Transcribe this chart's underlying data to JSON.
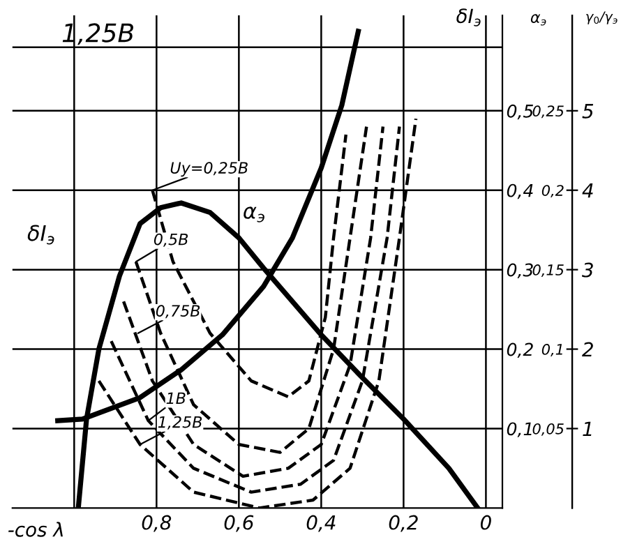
{
  "chart_data": {
    "type": "line",
    "xlabel": "-cos λ",
    "ylabel": "δI$_{э}$",
    "y2label": "α$_{э}$",
    "y3label": "γ$_{0}$/γ$_{э}$",
    "xlim": [
      1.15,
      -0.04
    ],
    "ylim": [
      0,
      0.62
    ],
    "y2lim": [
      0,
      0.31
    ],
    "y3lim": [
      0,
      6.2
    ],
    "xticks": [
      {
        "value": 1.0,
        "label": null
      },
      {
        "value": 0.8,
        "label": "0,8"
      },
      {
        "value": 0.6,
        "label": "0,6"
      },
      {
        "value": 0.4,
        "label": "0,4"
      },
      {
        "value": 0.2,
        "label": "0,2"
      },
      0
    ],
    "yticks": [
      {
        "value": 0.1,
        "label": "0,1"
      },
      {
        "value": 0.2,
        "label": "0,2"
      },
      {
        "value": 0.3,
        "label": "0,3"
      },
      {
        "value": 0.4,
        "label": "0,4"
      },
      {
        "value": 0.5,
        "label": "0,5"
      },
      {
        "value": 0.58,
        "label": null
      }
    ],
    "y2ticks": [
      {
        "value": 0.05,
        "label": "0,05"
      },
      {
        "value": 0.1,
        "label": "0,1"
      },
      {
        "value": 0.15,
        "label": "0,15"
      },
      {
        "value": 0.2,
        "label": "0,2"
      },
      {
        "value": 0.25,
        "label": "0,25"
      }
    ],
    "y3ticks": [
      1,
      2,
      3,
      4,
      5
    ],
    "grid": true,
    "series": [
      {
        "color": "#000000",
        "line_style": "solid",
        "axis": "y2",
        "x": [
          0.99,
          0.97,
          0.94,
          0.89,
          0.84,
          0.79,
          0.74,
          0.67,
          0.6,
          0.54,
          0.4,
          0.3,
          0.2,
          0.09,
          0.02
        ],
        "values": [
          0,
          0.056,
          0.1,
          0.146,
          0.179,
          0.189,
          0.192,
          0.186,
          0.17,
          0.151,
          0.109,
          0.082,
          0.056,
          0.025,
          0
        ]
      },
      {
        "color": "#000000",
        "line_style": "solid",
        "axis": "y3",
        "x": [
          1.04,
          0.98,
          0.84,
          0.74,
          0.64,
          0.54,
          0.47,
          0.4,
          0.35,
          0.31
        ],
        "values": [
          1.1,
          1.12,
          1.39,
          1.74,
          2.18,
          2.79,
          3.4,
          4.28,
          5.07,
          6.0
        ]
      },
      {
        "color": "#000000",
        "line_style": "dashed",
        "x": [
          0.81,
          0.76,
          0.67,
          0.57,
          0.48,
          0.43,
          0.39,
          0.37,
          0.34
        ],
        "values": [
          0.4,
          0.31,
          0.22,
          0.16,
          0.14,
          0.16,
          0.24,
          0.34,
          0.47
        ]
      },
      {
        "color": "#000000",
        "line_style": "dashed",
        "x": [
          0.85,
          0.79,
          0.71,
          0.6,
          0.5,
          0.43,
          0.37,
          0.33,
          0.29
        ],
        "values": [
          0.31,
          0.22,
          0.13,
          0.08,
          0.07,
          0.1,
          0.2,
          0.34,
          0.48
        ]
      },
      {
        "color": "#000000",
        "line_style": "dashed",
        "x": [
          0.88,
          0.81,
          0.71,
          0.59,
          0.48,
          0.4,
          0.33,
          0.28,
          0.25
        ],
        "values": [
          0.26,
          0.16,
          0.08,
          0.04,
          0.05,
          0.08,
          0.18,
          0.34,
          0.48
        ]
      },
      {
        "color": "#000000",
        "line_style": "dashed",
        "x": [
          0.91,
          0.82,
          0.71,
          0.57,
          0.45,
          0.37,
          0.3,
          0.24,
          0.21
        ],
        "values": [
          0.21,
          0.11,
          0.05,
          0.02,
          0.03,
          0.06,
          0.16,
          0.34,
          0.48
        ]
      },
      {
        "color": "#000000",
        "line_style": "dashed",
        "x": [
          0.94,
          0.84,
          0.71,
          0.55,
          0.42,
          0.33,
          0.26,
          0.21,
          0.17
        ],
        "values": [
          0.16,
          0.08,
          0.02,
          0.0,
          0.01,
          0.05,
          0.16,
          0.34,
          0.49
        ]
      }
    ],
    "annotations": [
      "1,25В",
      {
        "text": "Uу=0,25В",
        "x": 0.81,
        "y": 0.4
      },
      {
        "text": "0,5В",
        "x": 0.85,
        "y": 0.31
      },
      {
        "text": "0,75В",
        "x": 0.845,
        "y": 0.22
      },
      {
        "text": "1В",
        "x": 0.82,
        "y": 0.11
      },
      {
        "text": "1,25В",
        "x": 0.84,
        "y": 0.08
      },
      "α$_{э}$",
      "δI$_{э}$"
    ]
  }
}
